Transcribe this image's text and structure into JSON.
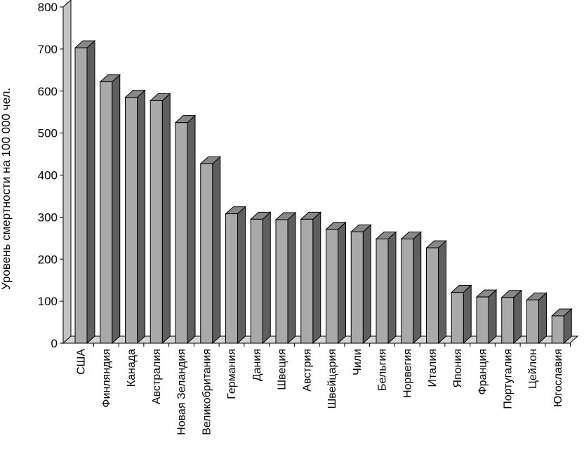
{
  "chart_data": {
    "type": "bar",
    "style": "3d",
    "ylabel": "Уровень смертности на 100 000 чел.",
    "xlabel": "",
    "ylim": [
      0,
      800
    ],
    "yticks": [
      0,
      100,
      200,
      300,
      400,
      500,
      600,
      700,
      800
    ],
    "grid": false,
    "categories": [
      "США",
      "Финляндия",
      "Канада",
      "Австралия",
      "Новая Зеландия",
      "Великобритания",
      "Германия",
      "Дания",
      "Швеция",
      "Австрия",
      "Швейцария",
      "Чили",
      "Бельгия",
      "Норвегия",
      "Италия",
      "Япония",
      "Франция",
      "Португалия",
      "Цейлон",
      "Югославия"
    ],
    "values": [
      703,
      622,
      585,
      577,
      525,
      427,
      308,
      295,
      294,
      295,
      271,
      265,
      248,
      248,
      227,
      121,
      110,
      109,
      103,
      65
    ],
    "colors": {
      "bar_front": "#a9a9a9",
      "bar_side": "#5f5f5f",
      "bar_top": "#888888",
      "wall": "#c4c4c4",
      "floor": "#d6d6d6",
      "outline": "#000000"
    }
  }
}
